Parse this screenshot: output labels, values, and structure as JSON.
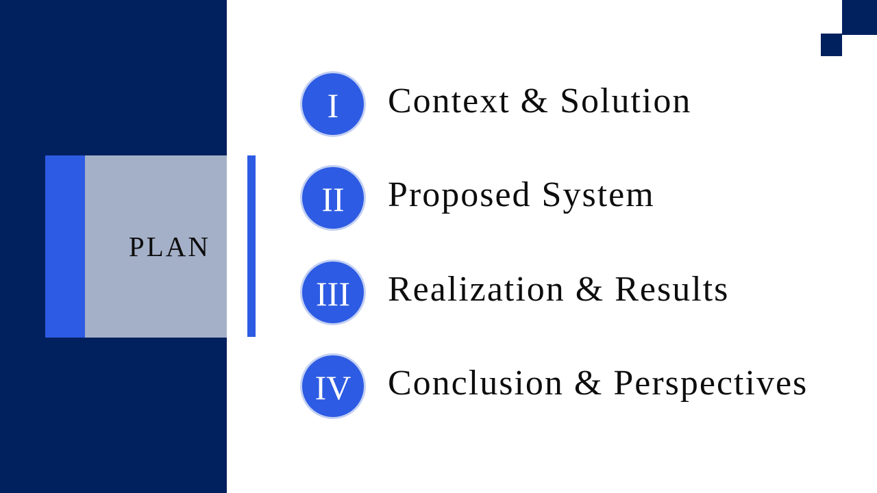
{
  "slide": {
    "title": "PLAN",
    "items": [
      {
        "numeral": "I",
        "label": "Context & Solution"
      },
      {
        "numeral": "II",
        "label": "Proposed System"
      },
      {
        "numeral": "III",
        "label": "Realization & Results"
      },
      {
        "numeral": "IV",
        "label": "Conclusion & Perspectives"
      }
    ]
  },
  "colors": {
    "navy": "#00205e",
    "accent_blue": "#2d5be3",
    "plan_box_gray": "#a4b0c8",
    "badge_ring": "#c3d0f3"
  }
}
